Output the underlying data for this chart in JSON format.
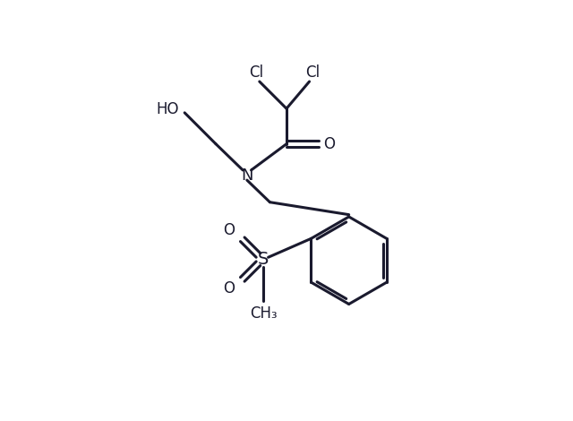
{
  "background_color": "#ffffff",
  "line_color": "#1a1a2e",
  "line_width": 2.2,
  "font_size": 12,
  "figsize": [
    6.4,
    4.7
  ],
  "dpi": 100,
  "xlim": [
    0,
    10
  ],
  "ylim": [
    0,
    10
  ]
}
